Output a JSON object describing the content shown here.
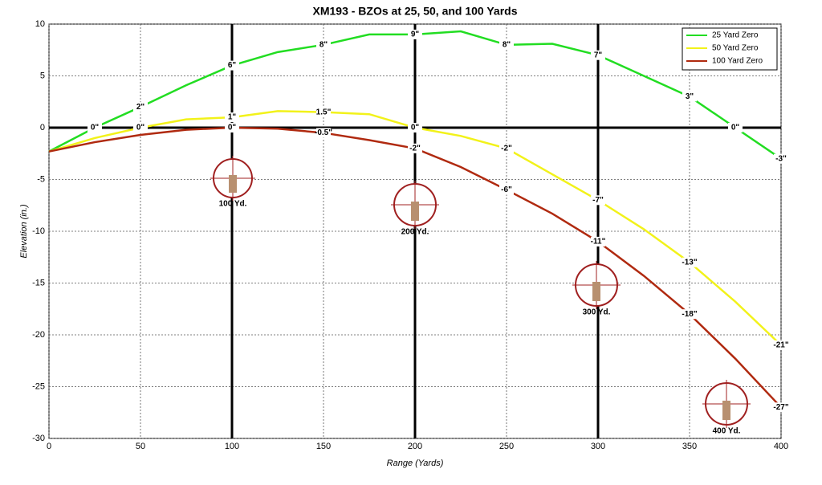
{
  "chart_data": {
    "type": "line",
    "title": "XM193 - BZOs at 25, 50, and 100 Yards",
    "x_label": "Range (Yards)",
    "y_label": "Elevation (in.)",
    "x": [
      0,
      25,
      50,
      75,
      100,
      125,
      150,
      175,
      200,
      225,
      250,
      275,
      300,
      325,
      350,
      375,
      400
    ],
    "series": [
      {
        "name": "25 Yard Zero",
        "color": "#22dd22",
        "values": [
          -2.3,
          0,
          2,
          4.1,
          6,
          7.3,
          8,
          9,
          9,
          9.3,
          8,
          8.1,
          7,
          5,
          3,
          0,
          -3
        ],
        "value_labels": [
          null,
          "0\"",
          "2\"",
          null,
          "6\"",
          null,
          "8\"",
          null,
          "9\"",
          null,
          "8\"",
          null,
          "7\"",
          null,
          "3\"",
          "0\"",
          "-3\""
        ]
      },
      {
        "name": "50 Yard Zero",
        "color": "#f2f21a",
        "values": [
          -2.3,
          -1,
          0,
          0.8,
          1,
          1.6,
          1.5,
          1.3,
          0,
          -0.8,
          -2,
          -4.5,
          -7,
          -9.8,
          -13,
          -16.8,
          -21
        ],
        "value_labels": [
          null,
          null,
          "0\"",
          null,
          "1\"",
          null,
          "1.5\"",
          null,
          "0\"",
          null,
          "-2\"",
          null,
          "-7\"",
          null,
          "-13\"",
          null,
          "-21\""
        ]
      },
      {
        "name": "100 Yard Zero",
        "color": "#b02a10",
        "values": [
          -2.3,
          -1.4,
          -0.7,
          -0.2,
          0,
          -0.1,
          -0.5,
          -1.2,
          -2,
          -3.8,
          -6,
          -8.3,
          -11,
          -14.3,
          -18,
          -22.3,
          -27
        ],
        "value_labels": [
          null,
          null,
          null,
          null,
          "0\"",
          null,
          "-0.5\"",
          null,
          "-2\"",
          null,
          "-6\"",
          null,
          "-11\"",
          null,
          "-18\"",
          null,
          "-27\""
        ]
      }
    ],
    "annotations": [
      "100 Yd.",
      "200 Yd.",
      "300 Yd.",
      "400 Yd."
    ],
    "xlim": [
      0,
      400
    ],
    "ylim": [
      -30,
      10
    ],
    "xticks": [
      0,
      50,
      100,
      150,
      200,
      250,
      300,
      350,
      400
    ],
    "yticks": [
      -30,
      -25,
      -20,
      -15,
      -10,
      -5,
      0,
      5,
      10
    ],
    "grid": true,
    "legend": "upper right"
  }
}
